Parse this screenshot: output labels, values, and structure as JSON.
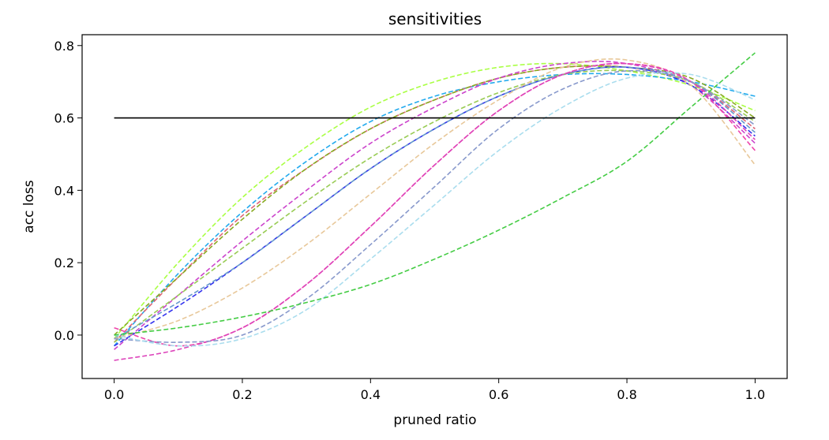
{
  "chart_data": {
    "type": "line",
    "title": "sensitivities",
    "xlabel": "pruned ratio",
    "ylabel": "acc loss",
    "xlim": [
      -0.05,
      1.05
    ],
    "ylim": [
      -0.12,
      0.83
    ],
    "xticks": [
      "0.0",
      "0.2",
      "0.4",
      "0.6",
      "0.8",
      "1.0"
    ],
    "yticks": [
      "0.0",
      "0.2",
      "0.4",
      "0.6",
      "0.8"
    ],
    "grid": false,
    "threshold": {
      "y": 0.6,
      "x": [
        0.0,
        1.0
      ],
      "color": "#000000"
    },
    "series": [
      {
        "color": "#aaff44",
        "x": [
          0,
          0.1,
          0.2,
          0.3,
          0.4,
          0.5,
          0.6,
          0.7,
          0.8,
          0.9,
          1.0
        ],
        "values": [
          -0.01,
          0.2,
          0.38,
          0.52,
          0.63,
          0.7,
          0.74,
          0.75,
          0.73,
          0.69,
          0.62
        ]
      },
      {
        "color": "#22aaee",
        "x": [
          0,
          0.1,
          0.2,
          0.3,
          0.4,
          0.5,
          0.6,
          0.7,
          0.8,
          0.9,
          1.0
        ],
        "values": [
          -0.03,
          0.17,
          0.34,
          0.48,
          0.59,
          0.66,
          0.7,
          0.72,
          0.72,
          0.7,
          0.66
        ]
      },
      {
        "color": "#dd6677",
        "x": [
          0,
          0.1,
          0.2,
          0.3,
          0.4,
          0.5,
          0.6,
          0.7,
          0.8,
          0.9,
          1.0
        ],
        "values": [
          -0.02,
          0.16,
          0.33,
          0.46,
          0.57,
          0.65,
          0.71,
          0.74,
          0.74,
          0.7,
          0.57
        ]
      },
      {
        "color": "#88aa22",
        "x": [
          0,
          0.1,
          0.2,
          0.3,
          0.4,
          0.5,
          0.6,
          0.7,
          0.8,
          0.9,
          1.0
        ],
        "values": [
          0.0,
          0.16,
          0.32,
          0.46,
          0.57,
          0.65,
          0.71,
          0.74,
          0.74,
          0.71,
          0.6
        ]
      },
      {
        "color": "#cc44cc",
        "x": [
          0,
          0.1,
          0.2,
          0.3,
          0.4,
          0.5,
          0.6,
          0.7,
          0.8,
          0.9,
          1.0
        ],
        "values": [
          -0.04,
          0.11,
          0.26,
          0.4,
          0.53,
          0.63,
          0.71,
          0.75,
          0.75,
          0.69,
          0.53
        ]
      },
      {
        "color": "#3333ee",
        "x": [
          0,
          0.1,
          0.2,
          0.3,
          0.4,
          0.5,
          0.6,
          0.7,
          0.8,
          0.9,
          1.0
        ],
        "values": [
          -0.03,
          0.08,
          0.2,
          0.33,
          0.46,
          0.57,
          0.66,
          0.72,
          0.74,
          0.69,
          0.55
        ]
      },
      {
        "color": "#99cc55",
        "x": [
          0,
          0.1,
          0.2,
          0.3,
          0.4,
          0.5,
          0.6,
          0.7,
          0.8,
          0.9,
          1.0
        ],
        "values": [
          -0.02,
          0.11,
          0.24,
          0.37,
          0.49,
          0.59,
          0.67,
          0.72,
          0.73,
          0.7,
          0.59
        ]
      },
      {
        "color": "#6699cc",
        "x": [
          0,
          0.1,
          0.2,
          0.3,
          0.4,
          0.5,
          0.6,
          0.7,
          0.8,
          0.9,
          1.0
        ],
        "values": [
          -0.01,
          0.09,
          0.2,
          0.33,
          0.46,
          0.57,
          0.66,
          0.72,
          0.74,
          0.7,
          0.56
        ]
      },
      {
        "color": "#e8c89a",
        "x": [
          0,
          0.1,
          0.2,
          0.3,
          0.4,
          0.5,
          0.6,
          0.7,
          0.8,
          0.9,
          1.0
        ],
        "values": [
          -0.01,
          0.04,
          0.13,
          0.25,
          0.39,
          0.53,
          0.65,
          0.74,
          0.76,
          0.69,
          0.47
        ]
      },
      {
        "color": "#ee44aa",
        "x": [
          0,
          0.1,
          0.2,
          0.3,
          0.4,
          0.5,
          0.6,
          0.7,
          0.8,
          0.9,
          1.0
        ],
        "values": [
          0.02,
          -0.03,
          0.02,
          0.14,
          0.3,
          0.47,
          0.62,
          0.72,
          0.75,
          0.7,
          0.51
        ]
      },
      {
        "color": "#dd44bb",
        "x": [
          0,
          0.1,
          0.2,
          0.3,
          0.4,
          0.5,
          0.6,
          0.7,
          0.8,
          0.9,
          1.0
        ],
        "values": [
          -0.07,
          -0.04,
          0.02,
          0.14,
          0.3,
          0.47,
          0.62,
          0.72,
          0.75,
          0.7,
          0.54
        ]
      },
      {
        "color": "#8899cc",
        "x": [
          0,
          0.1,
          0.2,
          0.3,
          0.4,
          0.5,
          0.6,
          0.7,
          0.8,
          0.9,
          1.0
        ],
        "values": [
          -0.01,
          -0.02,
          0.0,
          0.1,
          0.25,
          0.41,
          0.57,
          0.68,
          0.73,
          0.7,
          0.58
        ]
      },
      {
        "color": "#aaddee",
        "x": [
          0,
          0.1,
          0.2,
          0.3,
          0.4,
          0.5,
          0.6,
          0.7,
          0.8,
          0.9,
          1.0
        ],
        "values": [
          0.0,
          -0.03,
          -0.01,
          0.07,
          0.21,
          0.36,
          0.51,
          0.63,
          0.71,
          0.72,
          0.65
        ]
      },
      {
        "color": "#44cc44",
        "x": [
          0,
          0.1,
          0.2,
          0.3,
          0.4,
          0.5,
          0.6,
          0.7,
          0.8,
          0.9,
          1.0
        ],
        "values": [
          0.0,
          0.02,
          0.05,
          0.09,
          0.14,
          0.21,
          0.29,
          0.38,
          0.48,
          0.63,
          0.78
        ]
      }
    ]
  }
}
